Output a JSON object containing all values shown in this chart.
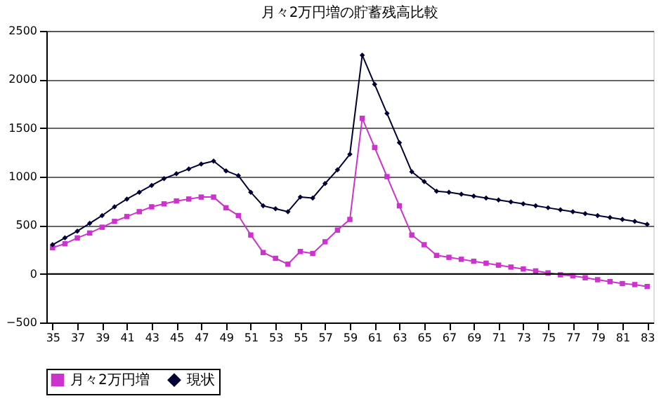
{
  "chart_data": {
    "type": "line",
    "title": "月々2万円増の貯蓄残高比較",
    "categories": [
      "35",
      null,
      "37",
      null,
      "39",
      null,
      "41",
      null,
      "43",
      null,
      "45",
      null,
      "47",
      null,
      "49",
      null,
      "51",
      null,
      "53",
      null,
      "55",
      null,
      "57",
      null,
      "59",
      null,
      "61",
      null,
      "63",
      null,
      "65",
      null,
      "67",
      null,
      "69",
      null,
      "71",
      null,
      "73",
      null,
      "75",
      null,
      "77",
      null,
      "79",
      null,
      "81",
      null,
      "83"
    ],
    "series": [
      {
        "name": "月々2万円増",
        "color": "#cc33cc",
        "marker": "square",
        "values": [
          270,
          310,
          370,
          420,
          480,
          540,
          590,
          640,
          690,
          720,
          750,
          770,
          790,
          790,
          680,
          600,
          400,
          220,
          160,
          100,
          230,
          210,
          330,
          450,
          560,
          1600,
          1300,
          1000,
          700,
          400,
          300,
          190,
          170,
          150,
          130,
          110,
          90,
          70,
          50,
          30,
          10,
          -10,
          -20,
          -40,
          -60,
          -80,
          -100,
          -110,
          -130
        ]
      },
      {
        "name": "現状",
        "color": "#000033",
        "marker": "diamond",
        "values": [
          300,
          370,
          440,
          520,
          600,
          690,
          770,
          840,
          910,
          980,
          1030,
          1080,
          1130,
          1160,
          1060,
          1010,
          840,
          700,
          670,
          640,
          790,
          780,
          930,
          1070,
          1230,
          2250,
          1950,
          1650,
          1350,
          1050,
          950,
          850,
          840,
          820,
          800,
          780,
          760,
          740,
          720,
          700,
          680,
          660,
          640,
          620,
          600,
          580,
          560,
          540,
          510
        ]
      }
    ],
    "ylim": [
      -500,
      2500
    ],
    "yticks": [
      -500,
      0,
      500,
      1000,
      1500,
      2000,
      2500
    ],
    "grid": "y",
    "legend": "bottom",
    "line_style": "solid"
  }
}
